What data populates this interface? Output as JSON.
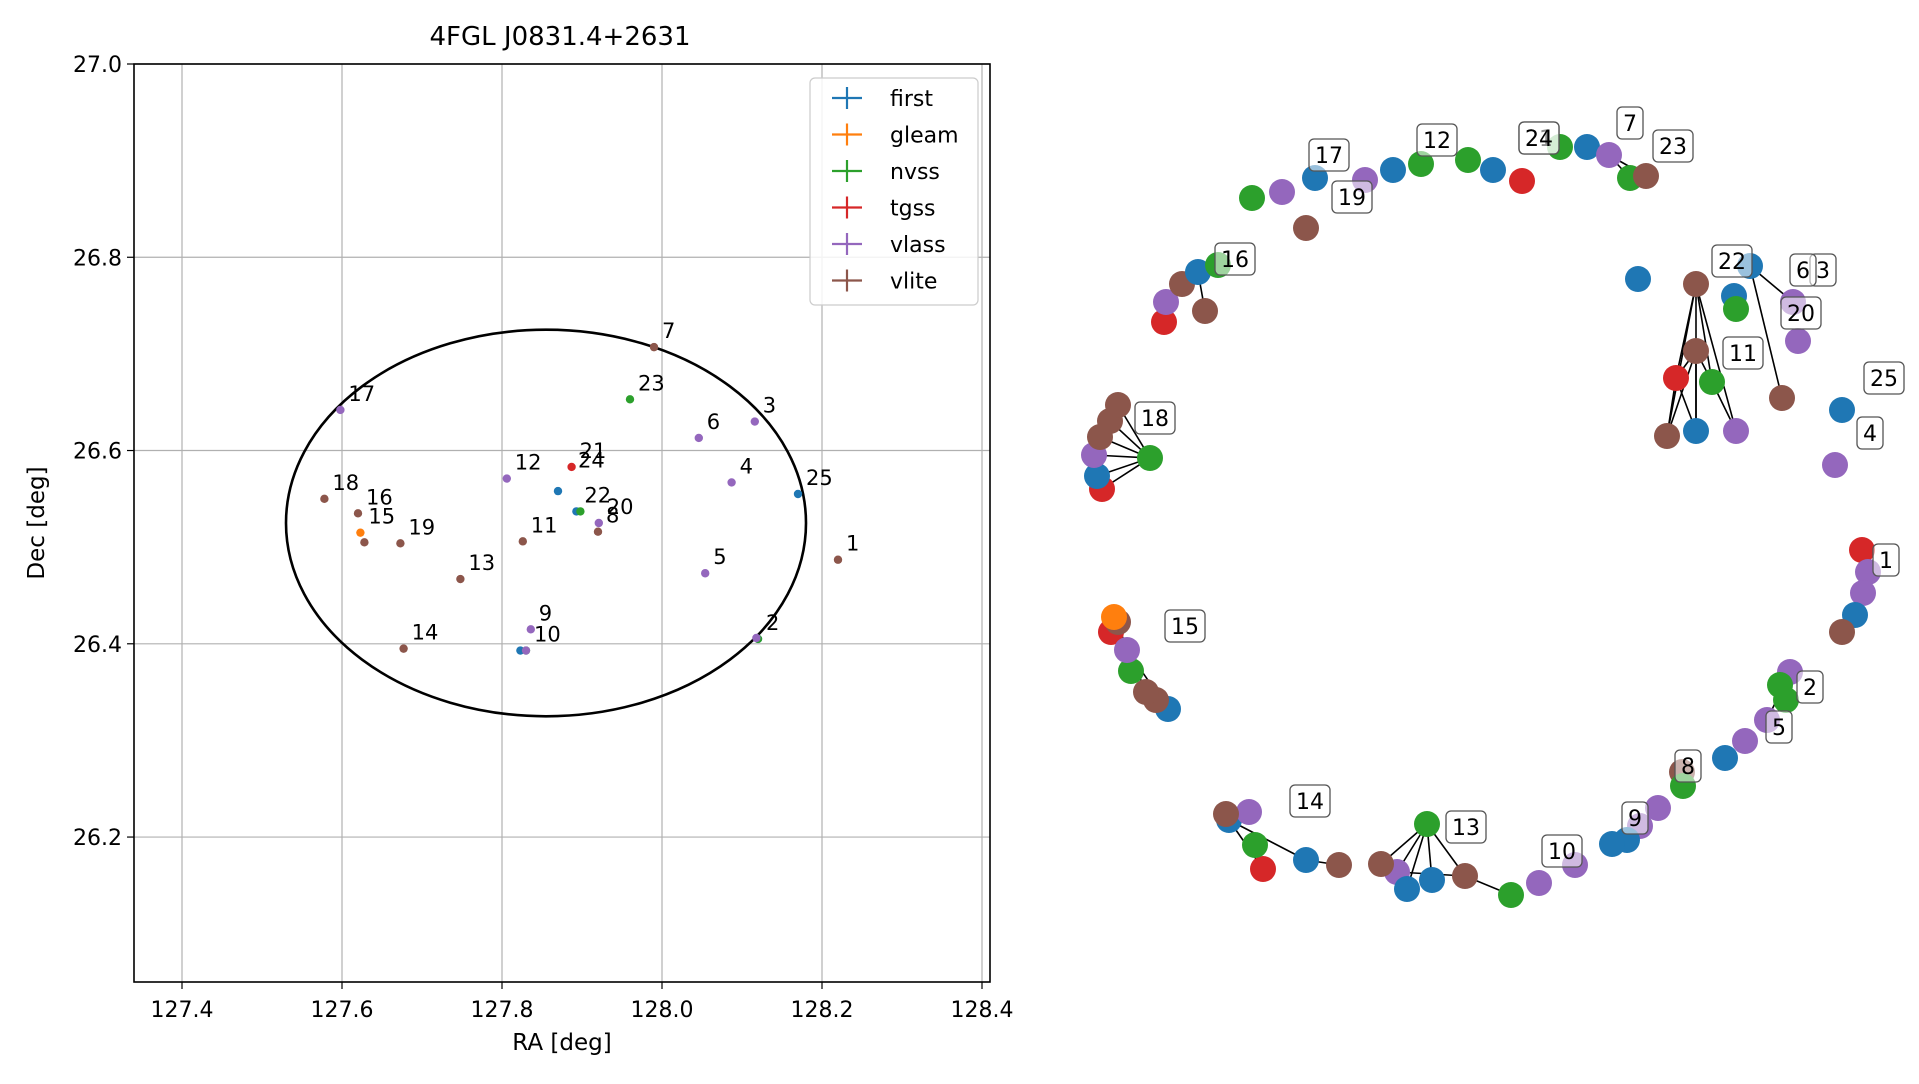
{
  "chart_data": [
    {
      "type": "scatter",
      "title": "4FGL J0831.4+2631",
      "xlabel": "RA [deg]",
      "ylabel": "Dec [deg]",
      "xlim": [
        127.34,
        128.41
      ],
      "ylim": [
        26.05,
        27.0
      ],
      "xticks": [
        127.4,
        127.6,
        127.8,
        128.0,
        128.2,
        128.4
      ],
      "yticks": [
        26.2,
        26.4,
        26.6,
        26.8,
        27.0
      ],
      "xtick_labels": [
        "127.4",
        "127.6",
        "127.8",
        "128.0",
        "128.2",
        "128.4"
      ],
      "ytick_labels": [
        "26.2",
        "26.4",
        "26.6",
        "26.8",
        "27.0"
      ],
      "grid": true,
      "legend_position": "top-right",
      "ellipse": {
        "center": [
          127.855,
          26.525
        ],
        "semi_axis_ra": 0.325,
        "semi_axis_dec": 0.2
      },
      "series": [
        {
          "name": "first",
          "color": "#1f77b4",
          "points": [
            [
              127.87,
              26.558
            ],
            [
              128.17,
              26.555
            ],
            [
              127.823,
              26.393
            ],
            [
              128.12,
              26.405
            ],
            [
              127.893,
              26.537
            ]
          ]
        },
        {
          "name": "gleam",
          "color": "#ff7f0e",
          "points": [
            [
              127.623,
              26.515
            ]
          ]
        },
        {
          "name": "nvss",
          "color": "#2ca02c",
          "points": [
            [
              127.96,
              26.653
            ],
            [
              127.898,
              26.537
            ],
            [
              128.12,
              26.405
            ],
            [
              127.83,
              26.393
            ]
          ]
        },
        {
          "name": "tgss",
          "color": "#d62728",
          "points": [
            [
              127.887,
              26.583
            ]
          ]
        },
        {
          "name": "vlass",
          "color": "#9467bd",
          "points": [
            [
              127.598,
              26.642
            ],
            [
              127.806,
              26.571
            ],
            [
              128.046,
              26.613
            ],
            [
              128.116,
              26.63
            ],
            [
              128.087,
              26.567
            ],
            [
              128.054,
              26.473
            ],
            [
              127.836,
              26.415
            ],
            [
              127.83,
              26.393
            ],
            [
              128.118,
              26.406
            ],
            [
              127.921,
              26.525
            ]
          ]
        },
        {
          "name": "vlite",
          "color": "#8c564b",
          "points": [
            [
              127.99,
              26.707
            ],
            [
              127.578,
              26.55
            ],
            [
              127.62,
              26.535
            ],
            [
              127.628,
              26.505
            ],
            [
              127.673,
              26.504
            ],
            [
              127.748,
              26.467
            ],
            [
              127.826,
              26.506
            ],
            [
              127.92,
              26.516
            ],
            [
              127.677,
              26.395
            ],
            [
              128.22,
              26.487
            ]
          ]
        }
      ],
      "labels": [
        {
          "text": "1",
          "x": 128.22,
          "y": 26.487
        },
        {
          "text": "2",
          "x": 128.12,
          "y": 26.405
        },
        {
          "text": "3",
          "x": 128.116,
          "y": 26.63
        },
        {
          "text": "4",
          "x": 128.087,
          "y": 26.567
        },
        {
          "text": "5",
          "x": 128.054,
          "y": 26.473
        },
        {
          "text": "6",
          "x": 128.046,
          "y": 26.613
        },
        {
          "text": "7",
          "x": 127.99,
          "y": 26.707
        },
        {
          "text": "8",
          "x": 127.92,
          "y": 26.516
        },
        {
          "text": "9",
          "x": 127.836,
          "y": 26.415
        },
        {
          "text": "10",
          "x": 127.83,
          "y": 26.393
        },
        {
          "text": "11",
          "x": 127.826,
          "y": 26.506
        },
        {
          "text": "12",
          "x": 127.806,
          "y": 26.571
        },
        {
          "text": "13",
          "x": 127.748,
          "y": 26.467
        },
        {
          "text": "14",
          "x": 127.677,
          "y": 26.395
        },
        {
          "text": "15",
          "x": 127.623,
          "y": 26.515
        },
        {
          "text": "16",
          "x": 127.62,
          "y": 26.535
        },
        {
          "text": "17",
          "x": 127.598,
          "y": 26.642
        },
        {
          "text": "18",
          "x": 127.578,
          "y": 26.55
        },
        {
          "text": "19",
          "x": 127.673,
          "y": 26.504
        },
        {
          "text": "20",
          "x": 127.921,
          "y": 26.525
        },
        {
          "text": "21",
          "x": 127.887,
          "y": 26.583
        },
        {
          "text": "22",
          "x": 127.893,
          "y": 26.537
        },
        {
          "text": "23",
          "x": 127.96,
          "y": 26.653
        },
        {
          "text": "24",
          "x": 127.885,
          "y": 26.573
        },
        {
          "text": "25",
          "x": 128.17,
          "y": 26.555
        }
      ]
    },
    {
      "type": "network",
      "colors": {
        "first": "#1f77b4",
        "gleam": "#ff7f0e",
        "nvss": "#2ca02c",
        "tgss": "#d62728",
        "vlass": "#9467bd",
        "vlite": "#8c564b"
      },
      "labels": [
        "1",
        "2",
        "3",
        "4",
        "5",
        "6",
        "7",
        "8",
        "9",
        "10",
        "11",
        "12",
        "13",
        "14",
        "15",
        "16",
        "17",
        "18",
        "19",
        "20",
        "21",
        "22",
        "23",
        "24",
        "25"
      ]
    }
  ]
}
